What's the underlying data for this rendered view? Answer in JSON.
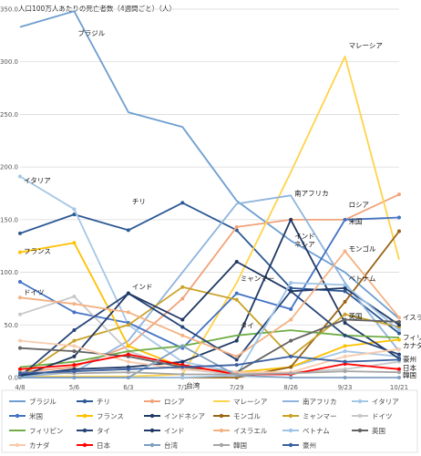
{
  "chart_data": {
    "type": "line",
    "title": "人口100万人あたりの死亡者数（4週間ごと）（人）",
    "xlabel": "",
    "ylabel": "",
    "x": [
      "4/8",
      "5/6",
      "6/3",
      "7/1",
      "7/29",
      "8/26",
      "9/23",
      "10/21"
    ],
    "ylim": [
      0,
      350
    ],
    "yticks": [
      0.0,
      50.0,
      100.0,
      150.0,
      200.0,
      250.0,
      300.0,
      350.0
    ],
    "ytick_labels": [
      "0.0",
      "50.0",
      "100.0",
      "150.0",
      "200.0",
      "250.0",
      "300.0",
      "350.0"
    ],
    "grid": true,
    "legend_position": "bottom",
    "series": [
      {
        "name": "ブラジル",
        "color": "#6e9ed0",
        "marker": false,
        "values": [
          333,
          348,
          252,
          238,
          168,
          130,
          100,
          56
        ]
      },
      {
        "name": "チリ",
        "color": "#2d5994",
        "marker": true,
        "values": [
          137,
          155,
          140,
          166,
          140,
          85,
          82,
          42
        ]
      },
      {
        "name": "ロシア",
        "color": "#f1a37b",
        "marker": true,
        "values": [
          5,
          10,
          30,
          75,
          143,
          150,
          150,
          174
        ]
      },
      {
        "name": "マレーシア",
        "color": "#ffd34a",
        "marker": false,
        "values": [
          1,
          1,
          1,
          3,
          90,
          195,
          305,
          112
        ]
      },
      {
        "name": "南アフリカ",
        "color": "#8fb4dd",
        "marker": false,
        "values": [
          1,
          5,
          35,
          100,
          165,
          173,
          90,
          25
        ]
      },
      {
        "name": "イタリア",
        "color": "#a6c6e6",
        "marker": true,
        "values": [
          191,
          160,
          50,
          15,
          5,
          10,
          25,
          20
        ]
      },
      {
        "name": "米国",
        "color": "#4472c4",
        "marker": true,
        "values": [
          91,
          62,
          52,
          28,
          80,
          65,
          150,
          152
        ]
      },
      {
        "name": "フランス",
        "color": "#ffc000",
        "marker": true,
        "values": [
          119,
          128,
          30,
          10,
          5,
          10,
          30,
          36
        ]
      },
      {
        "name": "インドネシア",
        "color": "#1f3864",
        "marker": true,
        "values": [
          2,
          8,
          10,
          15,
          35,
          150,
          52,
          18
        ]
      },
      {
        "name": "モンゴル",
        "color": "#996515",
        "marker": true,
        "values": [
          0,
          0,
          0,
          0,
          0,
          10,
          72,
          139
        ]
      },
      {
        "name": "ミャンマー",
        "color": "#c9a227",
        "marker": true,
        "values": [
          1,
          35,
          50,
          86,
          74,
          20,
          60,
          48
        ]
      },
      {
        "name": "ドイツ",
        "color": "#c8c8c8",
        "marker": true,
        "values": [
          60,
          77,
          25,
          8,
          3,
          5,
          8,
          15
        ]
      },
      {
        "name": "フィリピン",
        "color": "#70ad47",
        "marker": false,
        "values": [
          10,
          15,
          25,
          30,
          40,
          45,
          40,
          38
        ]
      },
      {
        "name": "タイ",
        "color": "#264478",
        "marker": true,
        "values": [
          1,
          45,
          80,
          48,
          17,
          82,
          40,
          22
        ]
      },
      {
        "name": "インド",
        "color": "#203864",
        "marker": true,
        "values": [
          1,
          20,
          80,
          55,
          110,
          82,
          85,
          50
        ]
      },
      {
        "name": "イスラエル",
        "color": "#f4b183",
        "marker": true,
        "values": [
          76,
          70,
          62,
          40,
          20,
          55,
          120,
          57
        ]
      },
      {
        "name": "ベトナム",
        "color": "#9dc3e6",
        "marker": true,
        "values": [
          0,
          0,
          0,
          0,
          2,
          90,
          88,
          45
        ]
      },
      {
        "name": "英国",
        "color": "#636363",
        "marker": true,
        "values": [
          28,
          25,
          20,
          10,
          5,
          35,
          55,
          53
        ]
      },
      {
        "name": "カナダ",
        "color": "#f8cbad",
        "marker": true,
        "values": [
          35,
          30,
          15,
          8,
          5,
          5,
          20,
          27
        ]
      },
      {
        "name": "日本",
        "color": "#ff0000",
        "marker": true,
        "values": [
          8,
          12,
          22,
          12,
          3,
          3,
          13,
          8
        ]
      },
      {
        "name": "台湾",
        "color": "#7f9fbf",
        "marker": true,
        "values": [
          0,
          0,
          0,
          30,
          2,
          0,
          0,
          0
        ]
      },
      {
        "name": "韓国",
        "color": "#a5a5a5",
        "marker": true,
        "values": [
          5,
          4,
          5,
          3,
          3,
          4,
          6,
          5
        ]
      },
      {
        "name": "豪州",
        "color": "#3a5fa0",
        "marker": true,
        "values": [
          4,
          6,
          8,
          10,
          12,
          20,
          15,
          17
        ]
      }
    ],
    "annotations": [
      {
        "text": "ブラジル",
        "x": "5/6",
        "y": 325
      },
      {
        "text": "マレーシア",
        "x": "9/23",
        "y": 313
      },
      {
        "text": "イタリア",
        "x": "4/8",
        "y": 185
      },
      {
        "text": "チリ",
        "x": "6/3",
        "y": 165
      },
      {
        "text": "南アフリカ",
        "x": "8/26",
        "y": 173
      },
      {
        "text": "ロシア",
        "x": "9/23",
        "y": 162
      },
      {
        "text": "米国",
        "x": "9/23",
        "y": 146
      },
      {
        "text": "インド\nネシア",
        "x": "8/26",
        "y": 132
      },
      {
        "text": "モンゴル",
        "x": "9/23",
        "y": 120
      },
      {
        "text": "フランス",
        "x": "4/8",
        "y": 118
      },
      {
        "text": "ミャンマー",
        "x": "7/29",
        "y": 92
      },
      {
        "text": "ベトナム",
        "x": "9/23",
        "y": 92
      },
      {
        "text": "ドイツ",
        "x": "4/8",
        "y": 79
      },
      {
        "text": "インド",
        "x": "6/3",
        "y": 84
      },
      {
        "text": "英国",
        "x": "9/23",
        "y": 56
      },
      {
        "text": "タイ",
        "x": "7/29",
        "y": 47
      },
      {
        "text": "イスラエル",
        "x": "10/21",
        "y": 55
      },
      {
        "text": "フィリピン",
        "x": "10/21",
        "y": 36
      },
      {
        "text": "カナダ",
        "x": "10/21",
        "y": 28
      },
      {
        "text": "台湾",
        "x": "7/1",
        "y": -10
      },
      {
        "text": "豪州",
        "x": "10/21",
        "y": 15
      },
      {
        "text": "日本",
        "x": "10/21",
        "y": 7
      },
      {
        "text": "韓国",
        "x": "10/21",
        "y": 0
      }
    ]
  }
}
